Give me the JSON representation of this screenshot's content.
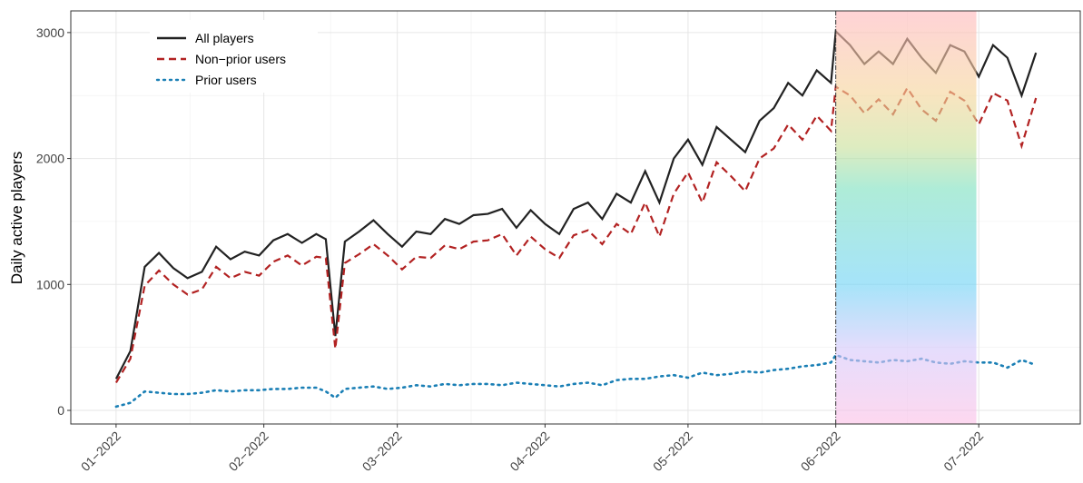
{
  "chart_data": {
    "type": "line",
    "ylabel": "Daily active players",
    "x": [
      0,
      3,
      6,
      9,
      12,
      15,
      18,
      21,
      24,
      27,
      30,
      33,
      36,
      39,
      42,
      44,
      46,
      48,
      51,
      54,
      57,
      60,
      63,
      66,
      69,
      72,
      75,
      78,
      81,
      84,
      87,
      90,
      93,
      96,
      99,
      102,
      105,
      108,
      111,
      114,
      117,
      120,
      123,
      126,
      129,
      132,
      135,
      138,
      141,
      144,
      147,
      150,
      151,
      154,
      157,
      160,
      163,
      166,
      169,
      172,
      175,
      178,
      181,
      184,
      187,
      190,
      193
    ],
    "series": [
      {
        "name": "All players",
        "color": "#222222",
        "dash": "solid",
        "values": [
          250,
          470,
          1140,
          1250,
          1130,
          1050,
          1100,
          1300,
          1200,
          1260,
          1230,
          1350,
          1400,
          1330,
          1400,
          1360,
          590,
          1340,
          1420,
          1510,
          1400,
          1300,
          1420,
          1400,
          1520,
          1480,
          1550,
          1560,
          1600,
          1450,
          1590,
          1480,
          1400,
          1600,
          1650,
          1520,
          1720,
          1650,
          1900,
          1650,
          2000,
          2150,
          1950,
          2250,
          2150,
          2050,
          2300,
          2400,
          2600,
          2500,
          2700,
          2600,
          3010,
          2900,
          2750,
          2850,
          2750,
          2950,
          2800,
          2680,
          2900,
          2850,
          2650,
          2900,
          2800,
          2500,
          2840
        ]
      },
      {
        "name": "Non−prior users",
        "color": "#b22222",
        "dash": "dashed",
        "values": [
          220,
          410,
          990,
          1110,
          1000,
          920,
          960,
          1140,
          1050,
          1100,
          1070,
          1180,
          1230,
          1150,
          1220,
          1210,
          490,
          1170,
          1240,
          1320,
          1230,
          1120,
          1220,
          1210,
          1310,
          1280,
          1340,
          1350,
          1400,
          1230,
          1380,
          1280,
          1210,
          1390,
          1430,
          1320,
          1480,
          1400,
          1650,
          1380,
          1720,
          1890,
          1650,
          1970,
          1860,
          1740,
          2000,
          2080,
          2270,
          2150,
          2340,
          2220,
          2570,
          2500,
          2360,
          2470,
          2350,
          2560,
          2390,
          2300,
          2530,
          2460,
          2270,
          2520,
          2460,
          2100,
          2480
        ]
      },
      {
        "name": "Prior users",
        "color": "#1a7fb5",
        "dash": "dotted",
        "values": [
          30,
          60,
          150,
          140,
          130,
          130,
          140,
          160,
          150,
          160,
          160,
          170,
          170,
          180,
          180,
          150,
          100,
          170,
          180,
          190,
          170,
          180,
          200,
          190,
          210,
          200,
          210,
          210,
          200,
          220,
          210,
          200,
          190,
          210,
          220,
          200,
          240,
          250,
          250,
          270,
          280,
          260,
          300,
          280,
          290,
          310,
          300,
          320,
          330,
          350,
          360,
          380,
          440,
          400,
          390,
          380,
          400,
          390,
          410,
          380,
          370,
          390,
          380,
          380,
          340,
          400,
          360
        ]
      }
    ],
    "xlim": [
      -9.5,
      202.3
    ],
    "xticks": [
      {
        "value": 0,
        "label": "01−2022"
      },
      {
        "value": 31,
        "label": "02−2022"
      },
      {
        "value": 59,
        "label": "03−2022"
      },
      {
        "value": 90,
        "label": "04−2022"
      },
      {
        "value": 120,
        "label": "05−2022"
      },
      {
        "value": 151,
        "label": "06−2022"
      },
      {
        "value": 181,
        "label": "07−2022"
      }
    ],
    "ylim": [
      -108,
      3172
    ],
    "yticks": [
      0,
      1000,
      2000,
      3000
    ],
    "grid": true,
    "legend": "top-left",
    "highlight": [
      151,
      180.5
    ],
    "vline": 151
  }
}
